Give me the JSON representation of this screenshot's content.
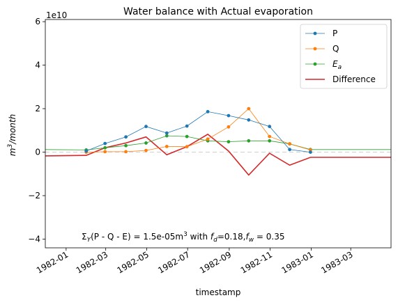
{
  "chart_data": {
    "type": "line",
    "title": "Water balance with Actual evaporation",
    "xlabel": "timestamp",
    "ylabel_base": "m",
    "ylabel_sup": "3",
    "ylabel_after": "/month",
    "y_offset_base": "1e10",
    "xlim": [
      "1981-12-01",
      "1983-04-30"
    ],
    "ylim": [
      -4.4,
      6.1
    ],
    "y_scale_note": "values in units of 1e10 m^3/month",
    "x_ticks": [
      {
        "date": "1982-01-01",
        "label": "1982-01"
      },
      {
        "date": "1982-03-01",
        "label": "1982-03"
      },
      {
        "date": "1982-05-01",
        "label": "1982-05"
      },
      {
        "date": "1982-07-01",
        "label": "1982-07"
      },
      {
        "date": "1982-09-01",
        "label": "1982-09"
      },
      {
        "date": "1982-11-01",
        "label": "1982-11"
      },
      {
        "date": "1983-01-01",
        "label": "1983-01"
      },
      {
        "date": "1983-03-01",
        "label": "1983-03"
      }
    ],
    "y_ticks": [
      {
        "value": -4,
        "label": "−4"
      },
      {
        "value": -2,
        "label": "−2"
      },
      {
        "value": 0,
        "label": "0"
      },
      {
        "value": 2,
        "label": "2"
      },
      {
        "value": 4,
        "label": "4"
      },
      {
        "value": 6,
        "label": "6"
      }
    ],
    "series": [
      {
        "name": "P",
        "color": "#1f77b4",
        "marker": true,
        "points": [
          {
            "x": "1982-01-31",
            "y": 0.05
          },
          {
            "x": "1982-02-28",
            "y": 0.4
          },
          {
            "x": "1982-03-31",
            "y": 0.7
          },
          {
            "x": "1982-04-30",
            "y": 1.18
          },
          {
            "x": "1982-05-31",
            "y": 0.88
          },
          {
            "x": "1982-06-30",
            "y": 1.2
          },
          {
            "x": "1982-07-31",
            "y": 1.86
          },
          {
            "x": "1982-08-31",
            "y": 1.68
          },
          {
            "x": "1982-09-30",
            "y": 1.48
          },
          {
            "x": "1982-10-31",
            "y": 1.18
          },
          {
            "x": "1982-11-30",
            "y": 0.12
          },
          {
            "x": "1982-12-31",
            "y": 0.0
          }
        ]
      },
      {
        "name": "Q",
        "color": "#ff7f0e",
        "marker": true,
        "points": [
          {
            "x": "1982-01-31",
            "y": 0.0
          },
          {
            "x": "1982-02-28",
            "y": 0.02
          },
          {
            "x": "1982-03-31",
            "y": 0.02
          },
          {
            "x": "1982-04-30",
            "y": 0.08
          },
          {
            "x": "1982-05-31",
            "y": 0.26
          },
          {
            "x": "1982-06-30",
            "y": 0.25
          },
          {
            "x": "1982-07-31",
            "y": 0.6
          },
          {
            "x": "1982-08-31",
            "y": 1.16
          },
          {
            "x": "1982-09-30",
            "y": 2.0
          },
          {
            "x": "1982-10-31",
            "y": 0.72
          },
          {
            "x": "1982-11-30",
            "y": 0.38
          },
          {
            "x": "1982-12-31",
            "y": 0.1
          }
        ]
      },
      {
        "name": "E_a",
        "label_base": "E",
        "label_sub": "a",
        "color": "#2ca02c",
        "marker": true,
        "points": [
          {
            "x": "1981-12-01",
            "y": 0.12
          },
          {
            "x": "1982-01-31",
            "y": 0.1
          },
          {
            "x": "1982-02-28",
            "y": 0.2
          },
          {
            "x": "1982-03-31",
            "y": 0.3
          },
          {
            "x": "1982-04-30",
            "y": 0.42
          },
          {
            "x": "1982-05-31",
            "y": 0.75
          },
          {
            "x": "1982-06-30",
            "y": 0.72
          },
          {
            "x": "1982-07-31",
            "y": 0.52
          },
          {
            "x": "1982-08-31",
            "y": 0.48
          },
          {
            "x": "1982-09-30",
            "y": 0.52
          },
          {
            "x": "1982-10-31",
            "y": 0.52
          },
          {
            "x": "1982-11-30",
            "y": 0.38
          },
          {
            "x": "1982-12-31",
            "y": 0.12
          },
          {
            "x": "1983-04-30",
            "y": 0.12
          }
        ]
      },
      {
        "name": "Difference",
        "color": "#d62728",
        "marker": false,
        "points": [
          {
            "x": "1981-12-01",
            "y": -0.17
          },
          {
            "x": "1982-01-31",
            "y": -0.15
          },
          {
            "x": "1982-02-28",
            "y": 0.2
          },
          {
            "x": "1982-03-31",
            "y": 0.42
          },
          {
            "x": "1982-04-30",
            "y": 0.7
          },
          {
            "x": "1982-05-31",
            "y": -0.12
          },
          {
            "x": "1982-06-30",
            "y": 0.25
          },
          {
            "x": "1982-07-31",
            "y": 0.82
          },
          {
            "x": "1982-08-31",
            "y": 0.05
          },
          {
            "x": "1982-09-30",
            "y": -1.05
          },
          {
            "x": "1982-10-31",
            "y": -0.05
          },
          {
            "x": "1982-11-30",
            "y": -0.6
          },
          {
            "x": "1982-12-31",
            "y": -0.24
          },
          {
            "x": "1983-04-30",
            "y": -0.24
          }
        ]
      }
    ],
    "reference_line": {
      "y": 0,
      "color": "#d3d3d3",
      "style": "dashed"
    },
    "legend_position": "top-right",
    "grid": false,
    "annotation": {
      "sigma": "Σ",
      "sub": "Y",
      "body": "(P - Q - E) = 1.5e-05m",
      "unit_sup": "3",
      "with": " with ",
      "fd_base": "f",
      "fd_sub": "d",
      "fd_val": "=0.18,",
      "fw_base": "f",
      "fw_sub": "w",
      "fw_val": " = 0.35",
      "position": "bottom-left"
    }
  }
}
